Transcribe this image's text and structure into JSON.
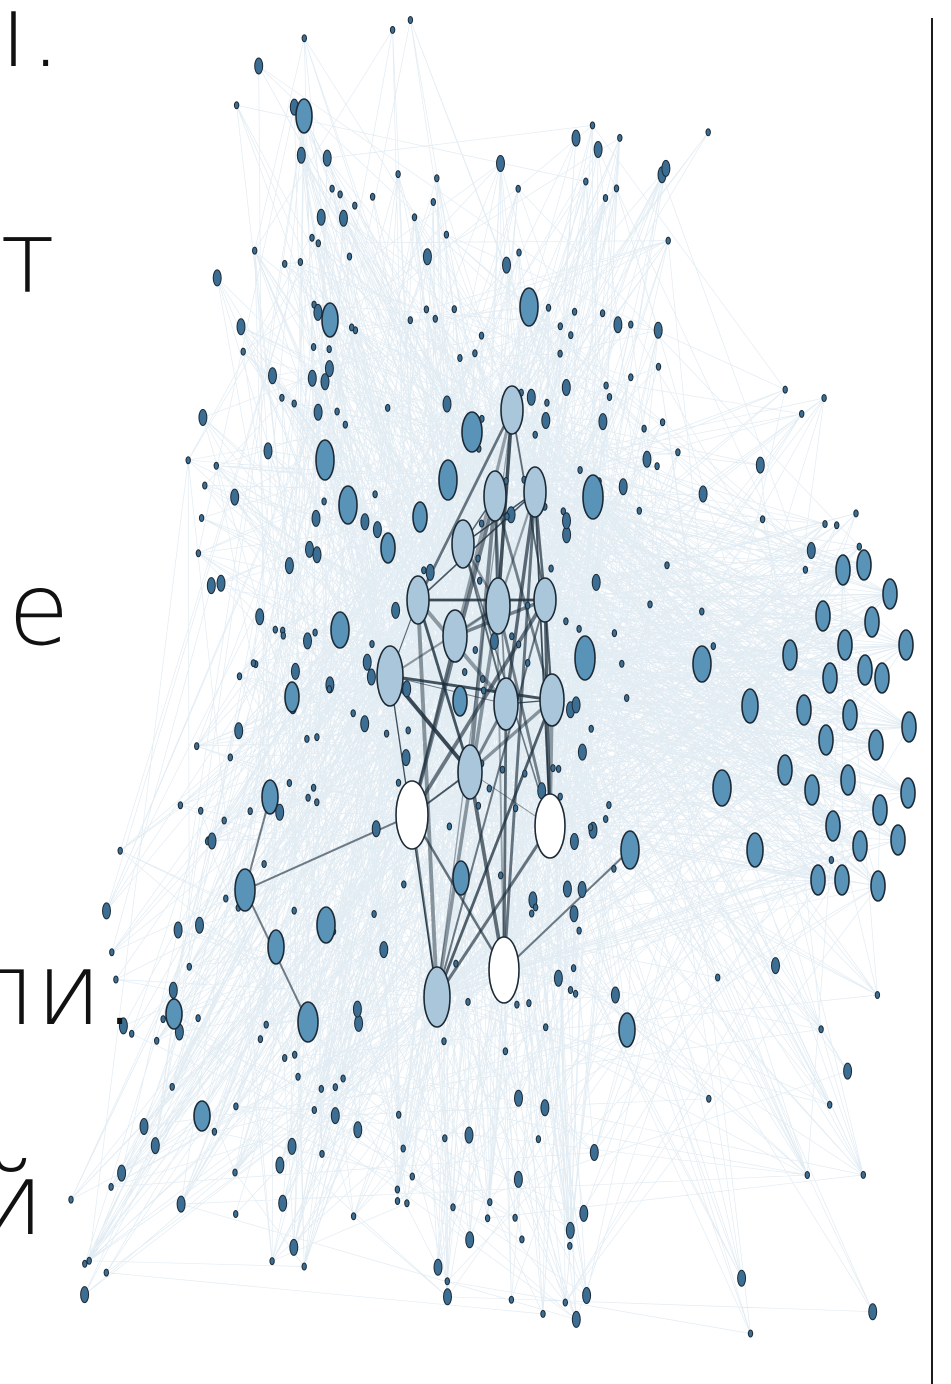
{
  "text_fragments": [
    "ı.",
    "т",
    "е",
    "ли.",
    "й"
  ],
  "network": {
    "edge_color": "#4a87b3",
    "strong_edge_color": "#1a2c3a",
    "node_dark": "#3b6e92",
    "node_mid": "#5a93b8",
    "node_light": "#a9c6da",
    "node_white": "#ffffff",
    "node_stroke": "#1c2a36"
  }
}
